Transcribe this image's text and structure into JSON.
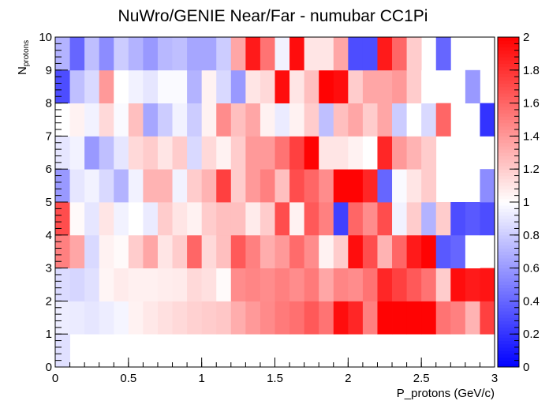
{
  "chart_data": {
    "type": "heatmap",
    "title": "NuWro/GENIE Near/Far - numubar CC1Pi",
    "xlabel": "P_protons (GeV/c)",
    "ylabel": "N_protons",
    "xlim": [
      0,
      3
    ],
    "ylim": [
      0,
      10
    ],
    "zlim": [
      0,
      2
    ],
    "x_ticks": [
      "0",
      "0.5",
      "1",
      "1.5",
      "2",
      "2.5",
      "3"
    ],
    "y_ticks": [
      "0",
      "1",
      "2",
      "3",
      "4",
      "5",
      "6",
      "7",
      "8",
      "9",
      "10"
    ],
    "z_ticks": [
      "0",
      "0.2",
      "0.4",
      "0.6",
      "0.8",
      "1",
      "1.2",
      "1.4",
      "1.6",
      "1.8",
      "2"
    ],
    "colormap": {
      "low": "#0000ff",
      "mid": "#ffffff",
      "high": "#ff0000"
    },
    "x_bin_width": 0.1,
    "y_bin_width": 1,
    "z_rows": [
      [
        0.88,
        null,
        null,
        null,
        null,
        null,
        null,
        null,
        null,
        null,
        null,
        null,
        null,
        null,
        null,
        null,
        null,
        null,
        null,
        null,
        null,
        null,
        null,
        null,
        null,
        null,
        null,
        null,
        null,
        null
      ],
      [
        0.93,
        0.92,
        0.9,
        0.93,
        0.96,
        1.05,
        1.09,
        1.12,
        1.15,
        1.18,
        1.2,
        1.22,
        1.32,
        1.4,
        1.46,
        1.52,
        1.56,
        1.65,
        1.55,
        1.95,
        1.85,
        1.5,
        1.99,
        1.99,
        1.99,
        1.99,
        1.55,
        1.5,
        1.3,
        1.75
      ],
      [
        0.86,
        0.84,
        0.88,
        1.04,
        1.08,
        1.06,
        1.06,
        1.07,
        1.08,
        1.15,
        1.12,
        1.02,
        1.45,
        1.48,
        1.45,
        1.5,
        1.45,
        1.52,
        1.35,
        1.48,
        1.45,
        1.55,
        1.85,
        1.75,
        1.65,
        1.55,
        1.2,
        1.95,
        1.9,
        1.92
      ],
      [
        1.5,
        1.35,
        0.85,
        1.05,
        1.02,
        1.2,
        1.35,
        1.1,
        1.2,
        1.6,
        1.15,
        1.25,
        1.65,
        1.5,
        1.32,
        1.4,
        1.58,
        1.45,
        1.05,
        1.2,
        1.95,
        1.7,
        1.3,
        1.6,
        1.9,
        1.99,
        0.35,
        0.4,
        1.0,
        null
      ],
      [
        1.7,
        1.02,
        0.9,
        1.1,
        0.95,
        1.0,
        0.92,
        1.2,
        1.1,
        1.05,
        1.2,
        1.25,
        1.25,
        1.08,
        1.2,
        1.7,
        1.05,
        1.65,
        1.5,
        0.25,
        1.6,
        1.45,
        1.7,
        0.95,
        1.2,
        0.7,
        1.2,
        0.3,
        0.35,
        0.3
      ],
      [
        0.6,
        0.9,
        0.95,
        0.85,
        0.7,
        0.95,
        1.3,
        1.3,
        0.95,
        1.2,
        1.3,
        1.75,
        1.2,
        1.4,
        1.5,
        1.25,
        1.7,
        1.6,
        1.45,
        1.99,
        1.99,
        1.85,
        0.4,
        0.98,
        1.1,
        1.2,
        null,
        null,
        null,
        0.55
      ],
      [
        0.9,
        0.95,
        0.6,
        0.75,
        0.9,
        1.15,
        1.2,
        1.1,
        1.2,
        0.85,
        1.15,
        1.05,
        1.2,
        1.4,
        1.4,
        1.55,
        1.75,
        1.99,
        1.1,
        1.1,
        1.05,
        1.0,
        1.85,
        1.4,
        1.3,
        1.2,
        null,
        null,
        null,
        null
      ],
      [
        1.0,
        1.05,
        0.95,
        1.15,
        0.98,
        1.25,
        0.65,
        0.8,
        0.95,
        0.8,
        1.05,
        1.45,
        1.25,
        1.35,
        1.05,
        0.92,
        1.05,
        1.2,
        0.75,
        1.25,
        1.35,
        1.2,
        1.35,
        0.8,
        1.0,
        0.85,
        1.6,
        null,
        null,
        0.2
      ],
      [
        0.3,
        0.75,
        0.85,
        1.4,
        1.0,
        0.95,
        0.9,
        0.98,
        0.98,
        0.7,
        1.05,
        0.85,
        0.6,
        1.1,
        1.15,
        1.95,
        1.1,
        1.25,
        1.99,
        1.95,
        1.2,
        1.35,
        1.35,
        1.4,
        1.2,
        1.0,
        null,
        null,
        0.6,
        null
      ],
      [
        0.7,
        0.4,
        0.75,
        0.55,
        0.8,
        0.7,
        0.6,
        0.72,
        0.75,
        0.65,
        0.65,
        0.8,
        1.35,
        1.9,
        1.55,
        0.95,
        1.95,
        1.1,
        1.1,
        1.35,
        0.3,
        0.3,
        1.9,
        1.6,
        1.2,
        null,
        0.4,
        null,
        null,
        null
      ]
    ]
  }
}
